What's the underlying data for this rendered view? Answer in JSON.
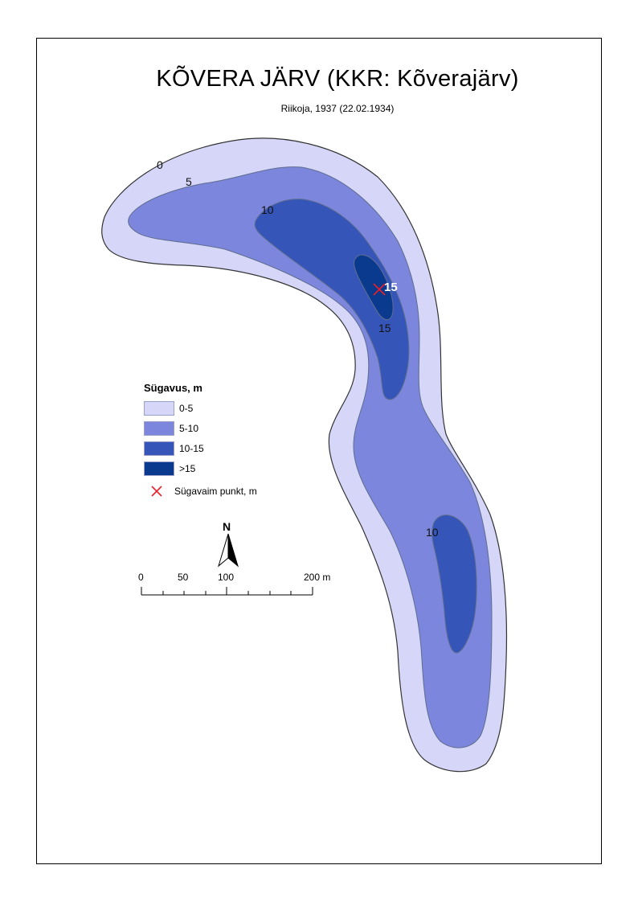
{
  "map": {
    "title": "KÕVERA JÄRV (KKR: Kõverajärv)",
    "subtitle": "Riikoja, 1937 (22.02.1934)"
  },
  "colors": {
    "depth_0_5": "#d5d6f8",
    "depth_5_10": "#7b86dc",
    "depth_10_15": "#3556b8",
    "depth_over_15": "#0a3a8e",
    "deepest_marker": "#e8202a",
    "shoreline": "#333333",
    "contour_line": "#5f6d8e"
  },
  "legend": {
    "title": "Sügavus, m",
    "items": [
      {
        "label": "0-5",
        "color": "#d5d6f8"
      },
      {
        "label": "5-10",
        "color": "#7b86dc"
      },
      {
        "label": "10-15",
        "color": "#3556b8"
      },
      {
        "label": ">15",
        "color": "#0a3a8e"
      }
    ],
    "point_label": "Sügavaim punkt, m",
    "point_icon": "x-mark-icon"
  },
  "contour_labels": [
    "0",
    "5",
    "10",
    "15",
    "10"
  ],
  "deepest_point": {
    "depth_label": "15"
  },
  "north_arrow": {
    "label": "N"
  },
  "scale_bar": {
    "labels": [
      "0",
      "50",
      "100",
      "200 m"
    ]
  }
}
